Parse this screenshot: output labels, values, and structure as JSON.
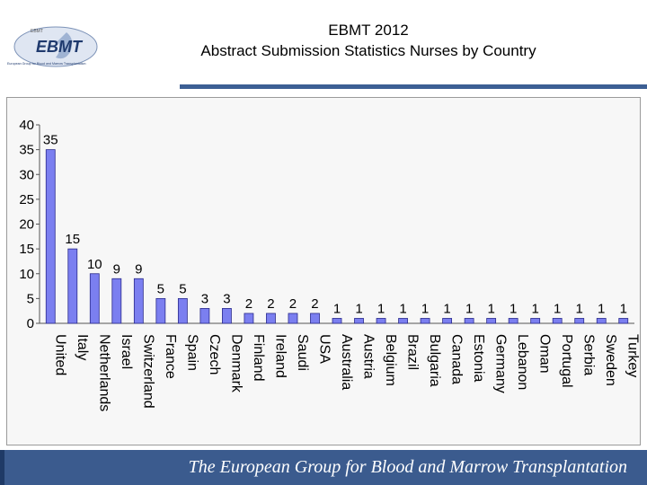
{
  "header": {
    "title_line1": "EBMT 2012",
    "title_line2": "Abstract Submission Statistics Nurses by Country",
    "logo_text": "EBMT",
    "logo_tagline": "European Group for Blood and Marrow Transplantation"
  },
  "footer": {
    "text": "The European Group for Blood and Marrow Transplantation"
  },
  "colors": {
    "bar_fill": "#7b7ff0",
    "bar_stroke": "#2a2a8c",
    "header_rule": "#3c5f94",
    "footer_bg": "#3b5b8e"
  },
  "chart_data": {
    "type": "bar",
    "categories": [
      "United",
      "Italy",
      "Netherlands",
      "Israel",
      "Switzerland",
      "France",
      "Spain",
      "Czech",
      "Denmark",
      "Finland",
      "Ireland",
      "Saudi",
      "USA",
      "Australia",
      "Austria",
      "Belgium",
      "Brazil",
      "Bulgaria",
      "Canada",
      "Estonia",
      "Germany",
      "Lebanon",
      "Oman",
      "Portugal",
      "Serbia",
      "Sweden",
      "Turkey"
    ],
    "values": [
      35,
      15,
      10,
      9,
      9,
      5,
      5,
      3,
      3,
      2,
      2,
      2,
      2,
      1,
      1,
      1,
      1,
      1,
      1,
      1,
      1,
      1,
      1,
      1,
      1,
      1,
      1
    ],
    "y_ticks": [
      0,
      5,
      10,
      15,
      20,
      25,
      30,
      35,
      40
    ],
    "ylim": [
      0,
      40
    ],
    "grid": false,
    "legend": "none",
    "data_labels": true
  }
}
